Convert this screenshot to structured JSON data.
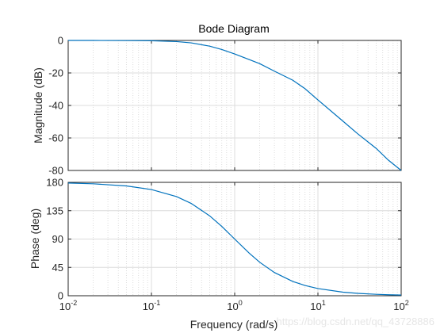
{
  "chart_data": {
    "type": "line",
    "title": "Bode Diagram",
    "xlabel": "Frequency  (rad/s)",
    "x_scale": "log",
    "xlim": [
      0.01,
      100
    ],
    "x_ticks": [
      0.01,
      0.1,
      1,
      10,
      100
    ],
    "x_tick_labels": [
      {
        "base": "10",
        "exp": "-2"
      },
      {
        "base": "10",
        "exp": "-1"
      },
      {
        "base": "10",
        "exp": "0"
      },
      {
        "base": "10",
        "exp": "1"
      },
      {
        "base": "10",
        "exp": "2"
      }
    ],
    "grid": true,
    "line_color": "#0072bd",
    "panels": [
      {
        "name": "magnitude",
        "ylabel": "Magnitude (dB)",
        "ylim": [
          -80,
          0
        ],
        "y_ticks": [
          0,
          -20,
          -40,
          -60,
          -80
        ],
        "x": [
          0.01,
          0.02,
          0.05,
          0.1,
          0.2,
          0.3,
          0.5,
          0.7,
          1,
          1.5,
          2,
          3,
          5,
          7,
          10,
          20,
          30,
          50,
          70,
          100
        ],
        "y": [
          0,
          0,
          -0.1,
          -0.2,
          -0.7,
          -1.5,
          -3.5,
          -5.6,
          -8.3,
          -11.8,
          -14.3,
          -18.9,
          -24.5,
          -29.7,
          -36.6,
          -49.7,
          -57.4,
          -66.4,
          -73.6,
          -80
        ]
      },
      {
        "name": "phase",
        "ylabel": "Phase (deg)",
        "ylim": [
          0,
          180
        ],
        "y_ticks": [
          180,
          135,
          90,
          45,
          0
        ],
        "x": [
          0.01,
          0.02,
          0.05,
          0.1,
          0.2,
          0.3,
          0.5,
          0.7,
          1,
          1.5,
          2,
          3,
          5,
          7,
          10,
          20,
          30,
          50,
          70,
          100
        ],
        "y": [
          178.9,
          177.7,
          174.3,
          168.6,
          157.4,
          146.6,
          126.9,
          110.1,
          90,
          67.4,
          53.1,
          36.9,
          22.6,
          16.3,
          11.4,
          5.7,
          3.8,
          2.3,
          1.6,
          1.1
        ]
      }
    ]
  },
  "watermark": "https://blog.csdn.net/qq_43728886"
}
